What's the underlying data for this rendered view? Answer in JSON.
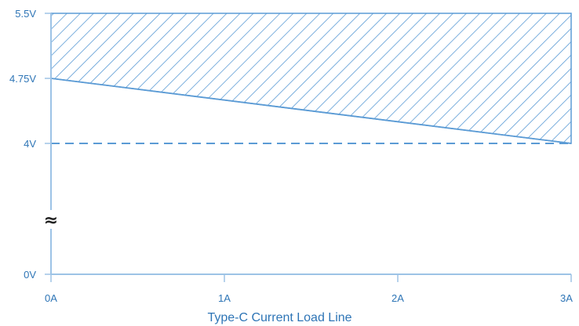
{
  "chart_data": {
    "type": "area",
    "title": "Type-C Current Load Line",
    "x_ticks": [
      {
        "value": 0,
        "label": "0A"
      },
      {
        "value": 1,
        "label": "1A"
      },
      {
        "value": 2,
        "label": "2A"
      },
      {
        "value": 3,
        "label": "3A"
      }
    ],
    "y_ticks": [
      {
        "value": 0,
        "label": "0V"
      },
      {
        "value": 4,
        "label": "4V"
      },
      {
        "value": 4.75,
        "label": "4.75V"
      },
      {
        "value": 5.5,
        "label": "5.5V"
      }
    ],
    "xlim": [
      0,
      3
    ],
    "ylim_upper_band": [
      4,
      5.5
    ],
    "y_axis_break": true,
    "axis_break_symbol": "≈",
    "load_line": {
      "x": [
        0,
        3
      ],
      "y": [
        4.75,
        4.0
      ]
    },
    "region": {
      "upper": 5.5,
      "lower_x": [
        0,
        3
      ],
      "lower_y": [
        4.75,
        4.0
      ],
      "fill": "diagonal-hatch"
    },
    "reference_line": {
      "y": 4,
      "style": "dashed"
    },
    "grid": false,
    "legend": "none",
    "colors": {
      "axis": "#9dc3e6",
      "line": "#5b9bd5",
      "hatch": "#5b9bd5",
      "text": "#2e75b6"
    }
  }
}
